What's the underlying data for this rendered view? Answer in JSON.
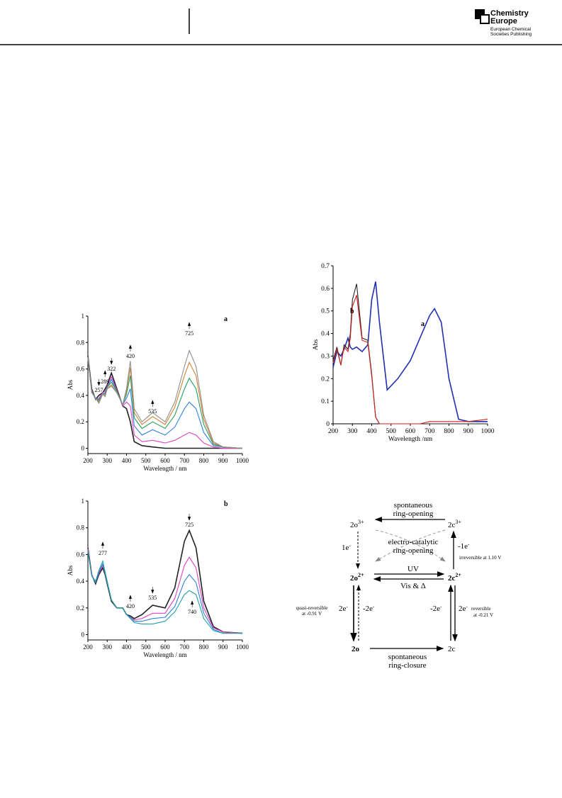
{
  "header": {
    "brand_line1": "Chemistry",
    "brand_line2": "Europe",
    "publisher_line1": "European Chemical",
    "publisher_line2": "Societies Publishing"
  },
  "chart_data": [
    {
      "type": "line",
      "label": "a",
      "x_label": "Wavelength / nm",
      "y_label": "Abs",
      "x": [
        200,
        220,
        240,
        257,
        277,
        289,
        300,
        322,
        350,
        380,
        400,
        420,
        440,
        480,
        535,
        600,
        650,
        700,
        725,
        760,
        800,
        850,
        900,
        1000
      ],
      "series": [
        {
          "color": "#222222",
          "values": [
            0.7,
            0.45,
            0.37,
            0.4,
            0.42,
            0.45,
            0.48,
            0.57,
            0.45,
            0.32,
            0.3,
            0.2,
            0.05,
            0.02,
            0.01,
            0,
            0,
            0,
            0,
            0,
            0,
            0,
            0,
            0
          ]
        },
        {
          "color": "#e040c0",
          "values": [
            0.69,
            0.44,
            0.37,
            0.38,
            0.42,
            0.43,
            0.47,
            0.54,
            0.44,
            0.32,
            0.35,
            0.32,
            0.1,
            0.05,
            0.06,
            0.04,
            0.06,
            0.1,
            0.12,
            0.1,
            0.04,
            0.01,
            0,
            0
          ]
        },
        {
          "color": "#3080e0",
          "values": [
            0.69,
            0.43,
            0.37,
            0.37,
            0.41,
            0.42,
            0.46,
            0.52,
            0.43,
            0.33,
            0.38,
            0.45,
            0.17,
            0.1,
            0.14,
            0.1,
            0.16,
            0.3,
            0.35,
            0.3,
            0.12,
            0.02,
            0.01,
            0
          ]
        },
        {
          "color": "#20a060",
          "values": [
            0.68,
            0.43,
            0.38,
            0.36,
            0.41,
            0.41,
            0.46,
            0.5,
            0.43,
            0.33,
            0.41,
            0.55,
            0.23,
            0.15,
            0.2,
            0.15,
            0.25,
            0.45,
            0.53,
            0.45,
            0.18,
            0.03,
            0.01,
            0
          ]
        },
        {
          "color": "#d08030",
          "values": [
            0.68,
            0.42,
            0.38,
            0.35,
            0.41,
            0.4,
            0.45,
            0.48,
            0.42,
            0.33,
            0.43,
            0.61,
            0.27,
            0.18,
            0.24,
            0.18,
            0.31,
            0.55,
            0.65,
            0.55,
            0.22,
            0.04,
            0.01,
            0
          ]
        },
        {
          "color": "#909090",
          "values": [
            0.68,
            0.42,
            0.38,
            0.34,
            0.41,
            0.39,
            0.45,
            0.47,
            0.42,
            0.33,
            0.45,
            0.66,
            0.3,
            0.2,
            0.27,
            0.2,
            0.35,
            0.62,
            0.74,
            0.62,
            0.25,
            0.05,
            0.01,
            0
          ]
        }
      ],
      "xlim": [
        200,
        1000
      ],
      "ylim": [
        -0.04,
        1
      ],
      "xticks": [
        200,
        300,
        400,
        500,
        600,
        700,
        800,
        900,
        1000
      ],
      "yticks": [
        0,
        0.2,
        0.4,
        0.6,
        0.8,
        1
      ],
      "peak_labels": [
        257,
        289,
        322,
        420,
        535,
        725
      ]
    },
    {
      "type": "line",
      "label": "b",
      "x_label": "Wavelength / nm",
      "y_label": "Abs",
      "x": [
        200,
        220,
        240,
        257,
        277,
        289,
        300,
        322,
        350,
        380,
        400,
        420,
        440,
        480,
        535,
        600,
        650,
        700,
        725,
        760,
        800,
        850,
        900,
        1000
      ],
      "series": [
        {
          "color": "#222222",
          "values": [
            0.65,
            0.45,
            0.38,
            0.45,
            0.5,
            0.45,
            0.38,
            0.25,
            0.2,
            0.2,
            0.15,
            0.14,
            0.12,
            0.15,
            0.22,
            0.2,
            0.35,
            0.7,
            0.78,
            0.65,
            0.25,
            0.06,
            0.02,
            0.01
          ]
        },
        {
          "color": "#e040c0",
          "values": [
            0.64,
            0.45,
            0.39,
            0.46,
            0.52,
            0.46,
            0.39,
            0.26,
            0.2,
            0.2,
            0.15,
            0.13,
            0.11,
            0.12,
            0.16,
            0.16,
            0.27,
            0.52,
            0.58,
            0.5,
            0.2,
            0.05,
            0.02,
            0.01
          ]
        },
        {
          "color": "#3080e0",
          "values": [
            0.63,
            0.44,
            0.39,
            0.47,
            0.53,
            0.46,
            0.39,
            0.26,
            0.2,
            0.2,
            0.15,
            0.13,
            0.1,
            0.1,
            0.12,
            0.13,
            0.21,
            0.4,
            0.45,
            0.39,
            0.16,
            0.04,
            0.01,
            0.01
          ]
        },
        {
          "color": "#20a0a0",
          "values": [
            0.62,
            0.44,
            0.4,
            0.48,
            0.55,
            0.47,
            0.4,
            0.26,
            0.2,
            0.2,
            0.15,
            0.12,
            0.09,
            0.08,
            0.08,
            0.1,
            0.17,
            0.3,
            0.33,
            0.3,
            0.12,
            0.03,
            0.01,
            0.01
          ]
        }
      ],
      "xlim": [
        200,
        1000
      ],
      "ylim": [
        -0.04,
        1
      ],
      "xticks": [
        200,
        300,
        400,
        500,
        600,
        700,
        800,
        900,
        1000
      ],
      "yticks": [
        0,
        0.2,
        0.4,
        0.6,
        0.8,
        1
      ],
      "peak_labels": [
        277,
        420,
        535,
        725,
        740
      ]
    },
    {
      "type": "line",
      "label_a": "a",
      "label_b": "b",
      "x_label": "Wavelength /nm",
      "y_label": "Abs",
      "x": [
        200,
        220,
        240,
        257,
        277,
        289,
        300,
        322,
        350,
        380,
        400,
        420,
        440,
        480,
        535,
        600,
        650,
        700,
        725,
        760,
        800,
        850,
        900,
        1000
      ],
      "series": [
        {
          "color": "#2030b0",
          "values": [
            0.25,
            0.32,
            0.3,
            0.33,
            0.38,
            0.34,
            0.33,
            0.34,
            0.32,
            0.35,
            0.55,
            0.63,
            0.45,
            0.15,
            0.2,
            0.28,
            0.38,
            0.48,
            0.51,
            0.45,
            0.2,
            0.02,
            0.01,
            0.01
          ]
        },
        {
          "color": "#222222",
          "values": [
            0.28,
            0.34,
            0.26,
            0.35,
            0.33,
            0.4,
            0.55,
            0.62,
            0.38,
            0.37,
            0.22,
            0.03,
            0,
            0,
            0,
            0,
            0,
            0,
            0,
            0,
            0,
            0,
            0,
            0
          ]
        },
        {
          "color": "#d02020",
          "values": [
            0.27,
            0.33,
            0.26,
            0.34,
            0.32,
            0.38,
            0.52,
            0.57,
            0.37,
            0.36,
            0.21,
            0.03,
            0,
            0,
            0,
            0,
            0,
            0.01,
            0.01,
            0.01,
            0.01,
            0.01,
            0.01,
            0.02
          ]
        }
      ],
      "xlim": [
        200,
        1000
      ],
      "ylim": [
        0,
        0.7
      ],
      "xticks": [
        200,
        300,
        400,
        500,
        600,
        700,
        800,
        900,
        1000
      ],
      "yticks": [
        0,
        0.1,
        0.2,
        0.3,
        0.4,
        0.5,
        0.6,
        0.7
      ]
    }
  ],
  "scheme": {
    "nodes": [
      {
        "base": "2o",
        "charge": "3+"
      },
      {
        "base": "2c",
        "charge": "3+"
      },
      {
        "base": "2o",
        "charge": "2+"
      },
      {
        "base": "2c",
        "charge": "2+"
      },
      {
        "base": "2o"
      },
      {
        "base": "2c"
      }
    ],
    "top_line1": "spontaneous",
    "top_line2": "ring-opening",
    "mid_line1": "electro-catalytic",
    "mid_line2": "ring-opening",
    "left_top": "1e",
    "left_top_sup": "-",
    "right_top": "-1e",
    "right_top_sup": "-",
    "right_top_note": "irreversible at 1.10 V",
    "forward": "UV",
    "backward": "Vis & Δ",
    "left_note1": "quasi-reversible",
    "left_note2": "at -0.91 V",
    "left_down": "2e",
    "left_down_sup": "-",
    "left_up": "-2e",
    "left_up_sup": "-",
    "right_up": "-2e",
    "right_up_sup": "-",
    "right_down": "2e",
    "right_down_sup": "-",
    "right_note1": "reversible",
    "right_note2": "at -0.21 V",
    "bottom_line1": "spontaneous",
    "bottom_line2": "ring-closure"
  }
}
